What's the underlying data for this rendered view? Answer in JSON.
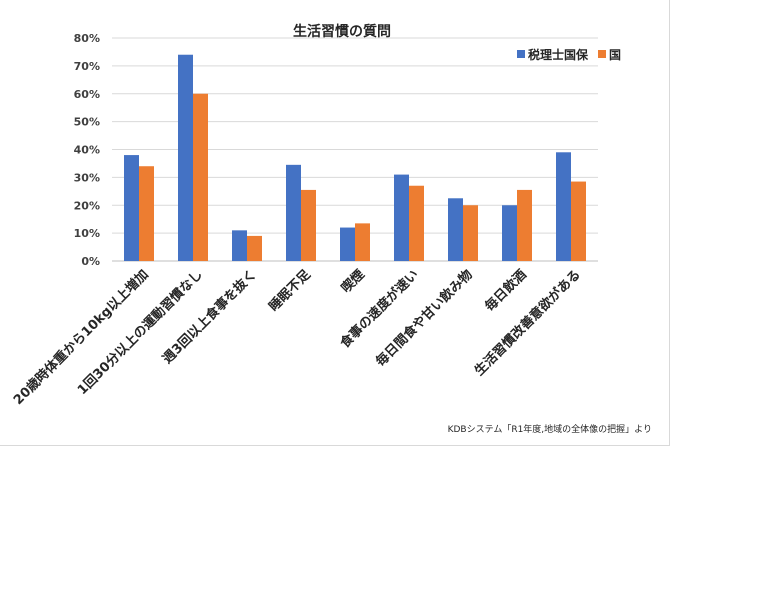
{
  "chart_data": {
    "type": "bar",
    "title": "生活習慣の質問",
    "categories": [
      "20歳時体重から10kg以上増加",
      "1回30分以上の運動習慣なし",
      "週3回以上食事を抜く",
      "睡眠不足",
      "喫煙",
      "食事の速度が速い",
      "毎日間食や甘い飲み物",
      "毎日飲酒",
      "生活習慣改善意欲がある"
    ],
    "series": [
      {
        "name": "税理士国保",
        "color": "#4472c4",
        "values": [
          38,
          74,
          11,
          34.5,
          12,
          31,
          22.5,
          20,
          39
        ]
      },
      {
        "name": "国",
        "color": "#ed7d31",
        "values": [
          34,
          60,
          9,
          25.5,
          13.5,
          27,
          20,
          25.5,
          28.5
        ]
      }
    ],
    "ylim": [
      0,
      80
    ],
    "yticks": [
      "0%",
      "10%",
      "20%",
      "30%",
      "40%",
      "50%",
      "60%",
      "70%",
      "80%"
    ],
    "grid": true,
    "legend_position": "top-right",
    "source_note": "KDBシステム「R1年度,地域の全体像の把握」より"
  },
  "colors": {
    "gridline": "#d9d9d9",
    "axis": "#bfbfbf"
  }
}
